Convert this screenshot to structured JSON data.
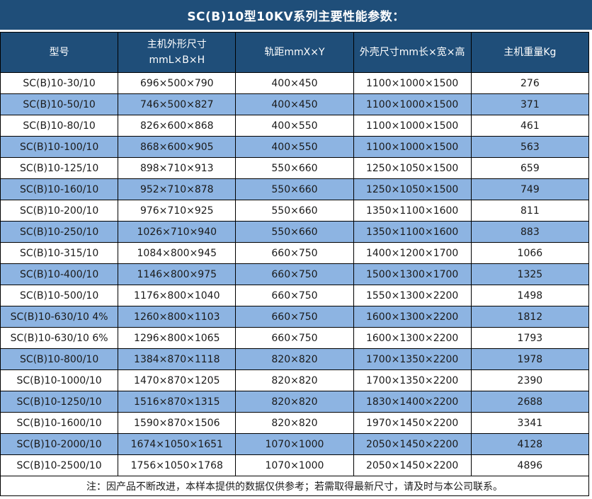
{
  "title": "SC(B)10型10KV系列主要性能参数：",
  "colors": {
    "header_bg": "#1F4E79",
    "alt_row_bg": "#8DB4E2",
    "row_bg": "#FFFFFF",
    "border": "#000000",
    "header_text": "#FFFFFF",
    "body_text": "#1A1A1A"
  },
  "table": {
    "columns": [
      {
        "label": "型号"
      },
      {
        "label": "主机外形尺寸",
        "label_line2": "mmL×B×H"
      },
      {
        "label": "轨距mmX×Y"
      },
      {
        "label": "外壳尺寸mm长×宽×高"
      },
      {
        "label": "主机重量Kg"
      }
    ],
    "rows": [
      [
        "SC(B)10-30/10",
        "696×500×790",
        "400×450",
        "1100×1000×1500",
        "276"
      ],
      [
        "SC(B)10-50/10",
        "746×500×827",
        "400×450",
        "1100×1000×1500",
        "371"
      ],
      [
        "SC(B)10-80/10",
        "826×600×868",
        "400×550",
        "1100×1000×1500",
        "461"
      ],
      [
        "SC(B)10-100/10",
        "868×600×905",
        "400×550",
        "1100×1000×1500",
        "563"
      ],
      [
        "SC(B)10-125/10",
        "898×710×913",
        "550×660",
        "1250×1050×1500",
        "659"
      ],
      [
        "SC(B)10-160/10",
        "952×710×878",
        "550×660",
        "1250×1050×1500",
        "749"
      ],
      [
        "SC(B)10-200/10",
        "976×710×925",
        "550×660",
        "1350×1100×1600",
        "811"
      ],
      [
        "SC(B)10-250/10",
        "1026×710×940",
        "550×660",
        "1350×1100×1600",
        "883"
      ],
      [
        "SC(B)10-315/10",
        "1084×800×945",
        "660×750",
        "1400×1200×1700",
        "1066"
      ],
      [
        "SC(B)10-400/10",
        "1146×800×975",
        "660×750",
        "1500×1300×1700",
        "1325"
      ],
      [
        "SC(B)10-500/10",
        "1176×800×1040",
        "660×750",
        "1550×1300×2200",
        "1498"
      ],
      [
        "SC(B)10-630/10 4%",
        "1260×800×1103",
        "660×750",
        "1600×1300×2200",
        "1812"
      ],
      [
        "SC(B)10-630/10 6%",
        "1296×800×1065",
        "660×750",
        "1600×1300×2200",
        "1793"
      ],
      [
        "SC(B)10-800/10",
        "1384×870×1118",
        "820×820",
        "1700×1350×2200",
        "1978"
      ],
      [
        "SC(B)10-1000/10",
        "1470×870×1205",
        "820×820",
        "1700×1350×2200",
        "2390"
      ],
      [
        "SC(B)10-1250/10",
        "1516×870×1315",
        "820×820",
        "1830×1400×2200",
        "2688"
      ],
      [
        "SC(B)10-1600/10",
        "1590×870×1506",
        "820×820",
        "1970×1450×2200",
        "3341"
      ],
      [
        "SC(B)10-2000/10",
        "1674×1050×1651",
        "1070×1000",
        "2050×1450×2200",
        "4128"
      ],
      [
        "SC(B)10-2500/10",
        "1756×1050×1768",
        "1070×1000",
        "2050×1450×2200",
        "4896"
      ]
    ]
  },
  "footnote": "注：因产品不断改进，本样本提供的数据仅供参考；若需取得最新尺寸，请及时与本公司联系。"
}
